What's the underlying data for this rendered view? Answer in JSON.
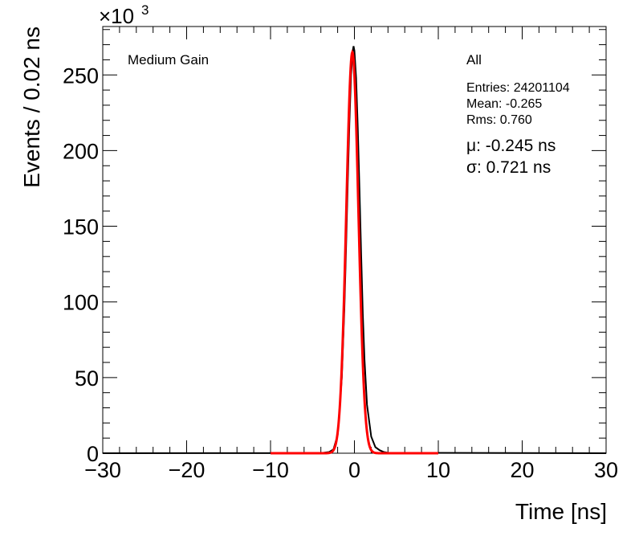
{
  "chart_data": {
    "type": "line",
    "xlabel": "Time [ns]",
    "ylabel": "Events / 0.02 ns",
    "y_multiplier_label": "×10",
    "y_multiplier_exponent": "3",
    "xlim": [
      -30,
      30
    ],
    "ylim": [
      0,
      282
    ],
    "x_ticks": [
      -30,
      -20,
      -10,
      0,
      10,
      20,
      30
    ],
    "x_tick_labels": [
      "−30",
      "−20",
      "−10",
      "0",
      "10",
      "20",
      "30"
    ],
    "y_ticks": [
      0,
      50,
      100,
      150,
      200,
      250
    ],
    "y_tick_labels": [
      "0",
      "50",
      "100",
      "150",
      "200",
      "250"
    ],
    "annotation": "Medium Gain",
    "stats": {
      "title": "All",
      "entries": "Entries: 24201104",
      "mean": "Mean: -0.265",
      "rms": "Rms: 0.760"
    },
    "fit": {
      "mu_label": "μ: -0.245 ns",
      "sigma_label": "σ: 0.721 ns",
      "range": [
        -10,
        10
      ],
      "mu": -0.245,
      "sigma": 0.721,
      "amplitude": 265
    },
    "series": [
      {
        "color": "#000000",
        "x": [
          -30,
          -4,
          -3,
          -2.5,
          -2,
          -1.5,
          -1.2,
          -1.0,
          -0.8,
          -0.6,
          -0.4,
          -0.2,
          -0.1,
          0.0,
          0.2,
          0.4,
          0.6,
          0.8,
          1.0,
          1.2,
          1.5,
          2.0,
          2.5,
          3.0,
          3.5,
          4.0,
          30
        ],
        "y": [
          0,
          0.1,
          0.8,
          2.5,
          12,
          50,
          95,
          135,
          178,
          218,
          250,
          266,
          269,
          266,
          248,
          215,
          175,
          132,
          92,
          62,
          32,
          11,
          4,
          2,
          0.8,
          0.3,
          0
        ]
      }
    ],
    "colors": {
      "histogram": "#000000",
      "fit": "#ff0000"
    }
  }
}
